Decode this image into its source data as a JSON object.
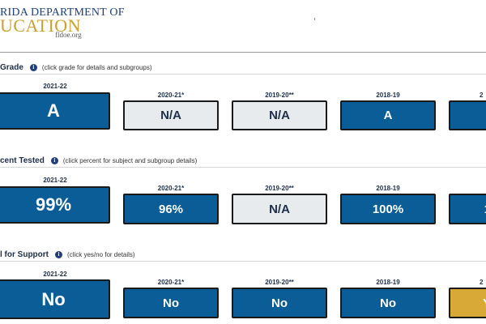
{
  "header": {
    "logo_top": "RIDA DEPARTMENT OF",
    "logo_main": "UCATION",
    "logo_url": "fldoe.org"
  },
  "sections": [
    {
      "title": "Grade",
      "hint": "(click grade for details and subgroups)",
      "cards": [
        {
          "year": "2021-22",
          "value": "A",
          "color": "#0b5d97"
        },
        {
          "year": "2020-21*",
          "value": "N/A",
          "color": "#e8ebee"
        },
        {
          "year": "2019-20**",
          "value": "N/A",
          "color": "#e8ebee"
        },
        {
          "year": "2018-19",
          "value": "A",
          "color": "#0b5d97"
        },
        {
          "year": "2",
          "value": "",
          "color": "#0b5d97"
        }
      ]
    },
    {
      "title": "cent Tested",
      "hint": "(click percent for subject and subgroup details)",
      "cards": [
        {
          "year": "2021-22",
          "value": "99%",
          "color": "#0b5d97"
        },
        {
          "year": "2020-21*",
          "value": "96%",
          "color": "#0b5d97"
        },
        {
          "year": "2019-20**",
          "value": "N/A",
          "color": "#e8ebee"
        },
        {
          "year": "2018-19",
          "value": "100%",
          "color": "#0b5d97"
        },
        {
          "year": "",
          "value": "1",
          "color": "#0b5d97"
        }
      ]
    },
    {
      "title": "l for Support",
      "hint": "(click yes/no for details)",
      "cards": [
        {
          "year": "2021-22",
          "value": "No",
          "color": "#0b5d97"
        },
        {
          "year": "2020-21*",
          "value": "No",
          "color": "#0b5d97"
        },
        {
          "year": "2019-20**",
          "value": "No",
          "color": "#0b5d97"
        },
        {
          "year": "2018-19",
          "value": "No",
          "color": "#0b5d97"
        },
        {
          "year": "2",
          "value": "Y",
          "color": "#d8a937"
        }
      ]
    }
  ]
}
